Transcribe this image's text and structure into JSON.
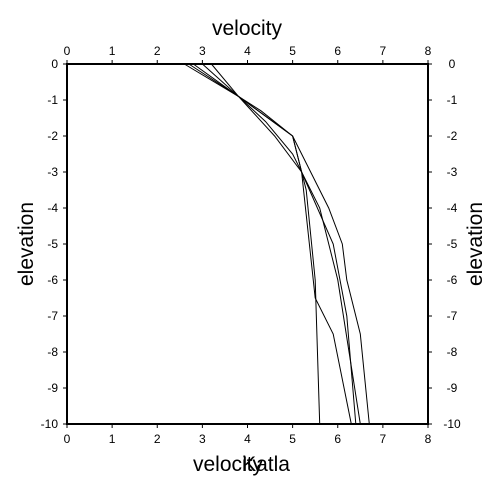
{
  "chart_data": {
    "type": "line",
    "top_xlabel": "velocity",
    "bottom_xlabels": [
      "velocity",
      "Katla"
    ],
    "left_ylabel": "elevation",
    "right_ylabel": "elevation",
    "xlim": [
      0,
      8
    ],
    "ylim": [
      -10,
      0
    ],
    "x_ticks": [
      0,
      1,
      2,
      3,
      4,
      5,
      6,
      7,
      8
    ],
    "y_ticks": [
      0,
      -1,
      -2,
      -3,
      -4,
      -5,
      -6,
      -7,
      -8,
      -9,
      -10
    ],
    "x_tick_labels": [
      "0",
      "1",
      "2",
      "3",
      "4",
      "5",
      "6",
      "7",
      "8"
    ],
    "y_tick_labels": [
      "0",
      "-1",
      "-2",
      "-3",
      "-4",
      "-5",
      "-6",
      "-7",
      "-8",
      "-9",
      "-10"
    ],
    "grid": false,
    "line_color": "#000000",
    "series": [
      {
        "points": [
          [
            2.7,
            0
          ],
          [
            3.8,
            -0.9
          ],
          [
            5.0,
            -2.0
          ],
          [
            5.3,
            -3.5
          ],
          [
            5.5,
            -6.0
          ],
          [
            5.6,
            -10.0
          ]
        ]
      },
      {
        "points": [
          [
            2.8,
            0
          ],
          [
            3.8,
            -0.9
          ],
          [
            4.3,
            -1.3
          ],
          [
            5.0,
            -2.0
          ],
          [
            5.2,
            -3.0
          ],
          [
            5.5,
            -6.5
          ],
          [
            5.9,
            -7.5
          ],
          [
            6.3,
            -10.0
          ]
        ]
      },
      {
        "points": [
          [
            3.0,
            0
          ],
          [
            3.8,
            -0.9
          ],
          [
            5.0,
            -2.0
          ],
          [
            5.8,
            -4.0
          ],
          [
            6.1,
            -5.0
          ],
          [
            6.2,
            -6.0
          ],
          [
            6.5,
            -7.5
          ],
          [
            6.7,
            -10.0
          ]
        ]
      },
      {
        "points": [
          [
            3.2,
            0
          ],
          [
            3.8,
            -0.9
          ],
          [
            4.4,
            -1.6
          ],
          [
            5.0,
            -2.5
          ],
          [
            5.6,
            -4.0
          ],
          [
            6.0,
            -6.0
          ],
          [
            6.5,
            -10.0
          ]
        ]
      },
      {
        "points": [
          [
            2.6,
            0
          ],
          [
            3.8,
            -0.9
          ],
          [
            4.6,
            -2.0
          ],
          [
            5.2,
            -3.0
          ],
          [
            5.9,
            -5.0
          ],
          [
            6.2,
            -7.0
          ],
          [
            6.4,
            -10.0
          ]
        ]
      }
    ]
  }
}
